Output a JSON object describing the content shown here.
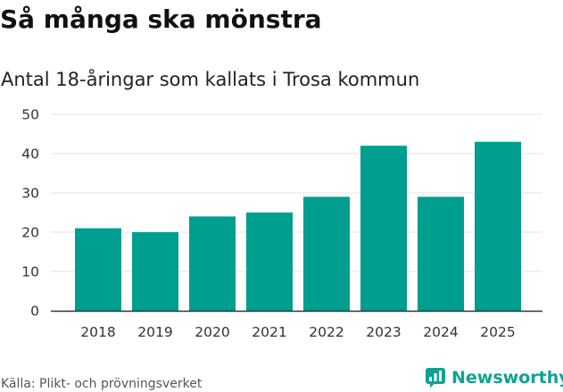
{
  "chart_data": {
    "type": "bar",
    "title": "Så många ska mönstra",
    "subtitle": "Antal 18-åringar som kallats i Trosa kommun",
    "categories": [
      "2018",
      "2019",
      "2020",
      "2021",
      "2022",
      "2023",
      "2024",
      "2025"
    ],
    "values": [
      21,
      20,
      24,
      25,
      29,
      42,
      29,
      43
    ],
    "xlabel": "",
    "ylabel": "",
    "ylim": [
      0,
      50
    ],
    "yticks": [
      "0",
      "10",
      "20",
      "30",
      "40",
      "50"
    ],
    "ytick_values": [
      0,
      10,
      20,
      30,
      40,
      50
    ],
    "grid": true,
    "bar_color": "#009e8f",
    "grid_color": "#e3e3e3",
    "axis_color": "#333333"
  },
  "footer": {
    "source": "Källa: Plikt- och prövningsverket",
    "brand": "Newsworthy",
    "brand_icon": "newsworthy-logo-icon",
    "brand_color": "#0fa293"
  }
}
